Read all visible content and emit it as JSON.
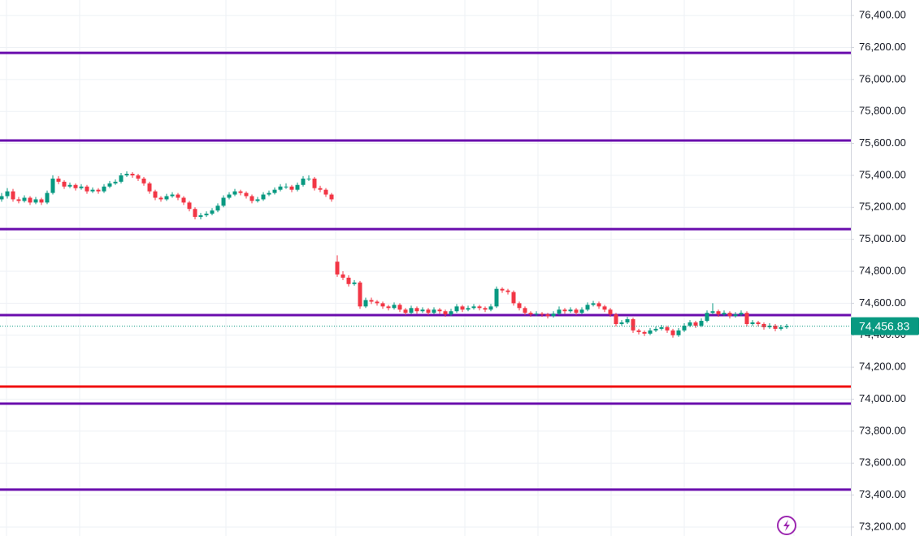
{
  "chart_data": {
    "type": "candlestick",
    "ylim": [
      73144,
      76497
    ],
    "yticks": [
      {
        "value": 73200,
        "label": "73,200.00"
      },
      {
        "value": 73400,
        "label": "73,400.00"
      },
      {
        "value": 73600,
        "label": "73,600.00"
      },
      {
        "value": 73800,
        "label": "73,800.00"
      },
      {
        "value": 74000,
        "label": "74,000.00"
      },
      {
        "value": 74200,
        "label": "74,200.00"
      },
      {
        "value": 74400,
        "label": "74,400.00"
      },
      {
        "value": 74600,
        "label": "74,600.00"
      },
      {
        "value": 74800,
        "label": "74,800.00"
      },
      {
        "value": 75000,
        "label": "75,000.00"
      },
      {
        "value": 75200,
        "label": "75,200.00"
      },
      {
        "value": 75400,
        "label": "75,400.00"
      },
      {
        "value": 75600,
        "label": "75,600.00"
      },
      {
        "value": 75800,
        "label": "75,800.00"
      },
      {
        "value": 76000,
        "label": "76,000.00"
      },
      {
        "value": 76200,
        "label": "76,200.00"
      },
      {
        "value": 76400,
        "label": "76,400.00"
      }
    ],
    "grid": true,
    "up_color": "#089981",
    "down_color": "#f23645",
    "horizontal_lines": [
      {
        "value": 76166,
        "color": "#6a0dad"
      },
      {
        "value": 75618,
        "color": "#6a0dad"
      },
      {
        "value": 75064,
        "color": "#6a0dad"
      },
      {
        "value": 74526,
        "color": "#6a0dad"
      },
      {
        "value": 74079,
        "color": "#f01010"
      },
      {
        "value": 73972,
        "color": "#6a0dad"
      },
      {
        "value": 73434,
        "color": "#6a0dad"
      }
    ],
    "last_price": {
      "value": 74456.83,
      "label": "74,456.83",
      "color": "#089981"
    },
    "candles": [
      [
        75250,
        75290,
        75235,
        75270
      ],
      [
        75270,
        75320,
        75255,
        75300
      ],
      [
        75300,
        75315,
        75235,
        75250
      ],
      [
        75250,
        75265,
        75225,
        75240
      ],
      [
        75240,
        75275,
        75230,
        75260
      ],
      [
        75260,
        75270,
        75215,
        75230
      ],
      [
        75230,
        75265,
        75220,
        75250
      ],
      [
        75250,
        75260,
        75215,
        75230
      ],
      [
        75230,
        75305,
        75220,
        75290
      ],
      [
        75290,
        75400,
        75280,
        75380
      ],
      [
        75380,
        75395,
        75345,
        75360
      ],
      [
        75360,
        75370,
        75315,
        75330
      ],
      [
        75330,
        75355,
        75320,
        75340
      ],
      [
        75340,
        75350,
        75305,
        75320
      ],
      [
        75320,
        75345,
        75310,
        75330
      ],
      [
        75330,
        75340,
        75285,
        75300
      ],
      [
        75300,
        75325,
        75290,
        75310
      ],
      [
        75310,
        75320,
        75285,
        75300
      ],
      [
        75300,
        75345,
        75290,
        75330
      ],
      [
        75330,
        75365,
        75320,
        75350
      ],
      [
        75350,
        75375,
        75340,
        75360
      ],
      [
        75360,
        75415,
        75350,
        75400
      ],
      [
        75400,
        75425,
        75390,
        75410
      ],
      [
        75410,
        75420,
        75385,
        75400
      ],
      [
        75400,
        75410,
        75365,
        75380
      ],
      [
        75380,
        75390,
        75335,
        75350
      ],
      [
        75350,
        75360,
        75285,
        75300
      ],
      [
        75300,
        75310,
        75245,
        75260
      ],
      [
        75260,
        75270,
        75235,
        75250
      ],
      [
        75250,
        75285,
        75240,
        75270
      ],
      [
        75270,
        75295,
        75260,
        75280
      ],
      [
        75280,
        75290,
        75245,
        75260
      ],
      [
        75260,
        75270,
        75215,
        75230
      ],
      [
        75230,
        75240,
        75175,
        75190
      ],
      [
        75190,
        75200,
        75125,
        75140
      ],
      [
        75140,
        75165,
        75125,
        75150
      ],
      [
        75150,
        75175,
        75140,
        75160
      ],
      [
        75160,
        75195,
        75150,
        75180
      ],
      [
        75180,
        75225,
        75170,
        75210
      ],
      [
        75210,
        75275,
        75200,
        75260
      ],
      [
        75260,
        75295,
        75250,
        75280
      ],
      [
        75280,
        75315,
        75270,
        75300
      ],
      [
        75300,
        75310,
        75275,
        75290
      ],
      [
        75290,
        75300,
        75255,
        75270
      ],
      [
        75270,
        75280,
        75225,
        75240
      ],
      [
        75240,
        75265,
        75230,
        75250
      ],
      [
        75250,
        75295,
        75240,
        75280
      ],
      [
        75280,
        75305,
        75270,
        75290
      ],
      [
        75290,
        75325,
        75280,
        75310
      ],
      [
        75310,
        75345,
        75300,
        75330
      ],
      [
        75330,
        75350,
        75315,
        75330
      ],
      [
        75330,
        75340,
        75295,
        75310
      ],
      [
        75310,
        75355,
        75300,
        75340
      ],
      [
        75340,
        75395,
        75330,
        75380
      ],
      [
        75380,
        75400,
        75365,
        75380
      ],
      [
        75380,
        75390,
        75305,
        75320
      ],
      [
        75320,
        75335,
        75295,
        75310
      ],
      [
        75310,
        75320,
        75265,
        75280
      ],
      [
        75280,
        75290,
        75235,
        75250
      ],
      [
        74860,
        74900,
        74765,
        74780
      ],
      [
        74780,
        74800,
        74745,
        74760
      ],
      [
        74760,
        74775,
        74705,
        74720
      ],
      [
        74720,
        74745,
        74710,
        74730
      ],
      [
        74730,
        74740,
        74565,
        74580
      ],
      [
        74580,
        74635,
        74570,
        74620
      ],
      [
        74620,
        74635,
        74595,
        74610
      ],
      [
        74610,
        74620,
        74585,
        74600
      ],
      [
        74600,
        74610,
        74565,
        74580
      ],
      [
        74580,
        74590,
        74555,
        74570
      ],
      [
        74570,
        74605,
        74560,
        74590
      ],
      [
        74590,
        74600,
        74545,
        74560
      ],
      [
        74560,
        74570,
        74525,
        74540
      ],
      [
        74540,
        74585,
        74530,
        74570
      ],
      [
        74570,
        74580,
        74535,
        74550
      ],
      [
        74550,
        74575,
        74540,
        74560
      ],
      [
        74560,
        74570,
        74525,
        74540
      ],
      [
        74540,
        74575,
        74530,
        74560
      ],
      [
        74560,
        74570,
        74535,
        74550
      ],
      [
        74550,
        74560,
        74515,
        74530
      ],
      [
        74530,
        74565,
        74520,
        74550
      ],
      [
        74550,
        74595,
        74540,
        74580
      ],
      [
        74580,
        74590,
        74545,
        74560
      ],
      [
        74560,
        74585,
        74550,
        74570
      ],
      [
        74570,
        74595,
        74560,
        74580
      ],
      [
        74580,
        74590,
        74555,
        74570
      ],
      [
        74570,
        74580,
        74545,
        74560
      ],
      [
        74560,
        74595,
        74550,
        74580
      ],
      [
        74580,
        74705,
        74570,
        74690
      ],
      [
        74690,
        74700,
        74665,
        74680
      ],
      [
        74680,
        74690,
        74655,
        74670
      ],
      [
        74670,
        74680,
        74585,
        74600
      ],
      [
        74600,
        74610,
        74555,
        74570
      ],
      [
        74570,
        74580,
        74525,
        74540
      ],
      [
        74540,
        74550,
        74515,
        74530
      ],
      [
        74530,
        74550,
        74520,
        74535
      ],
      [
        74535,
        74545,
        74515,
        74530
      ],
      [
        74530,
        74540,
        74505,
        74520
      ],
      [
        74520,
        74550,
        74510,
        74535
      ],
      [
        74535,
        74580,
        74525,
        74560
      ],
      [
        74560,
        74570,
        74535,
        74550
      ],
      [
        74550,
        74575,
        74540,
        74560
      ],
      [
        74560,
        74570,
        74525,
        74540
      ],
      [
        74540,
        74575,
        74530,
        74560
      ],
      [
        74560,
        74605,
        74550,
        74590
      ],
      [
        74590,
        74615,
        74580,
        74600
      ],
      [
        74600,
        74610,
        74565,
        74580
      ],
      [
        74580,
        74590,
        74545,
        74560
      ],
      [
        74560,
        74570,
        74515,
        74530
      ],
      [
        74530,
        74540,
        74455,
        74470
      ],
      [
        74470,
        74495,
        74460,
        74480
      ],
      [
        74480,
        74515,
        74470,
        74500
      ],
      [
        74500,
        74510,
        74415,
        74430
      ],
      [
        74430,
        74440,
        74405,
        74420
      ],
      [
        74420,
        74430,
        74395,
        74410
      ],
      [
        74410,
        74445,
        74400,
        74430
      ],
      [
        74430,
        74455,
        74420,
        74440
      ],
      [
        74440,
        74465,
        74430,
        74450
      ],
      [
        74450,
        74460,
        74415,
        74430
      ],
      [
        74430,
        74440,
        74385,
        74400
      ],
      [
        74400,
        74445,
        74390,
        74430
      ],
      [
        74430,
        74475,
        74420,
        74460
      ],
      [
        74460,
        74495,
        74450,
        74480
      ],
      [
        74480,
        74490,
        74445,
        74460
      ],
      [
        74460,
        74505,
        74450,
        74490
      ],
      [
        74490,
        74555,
        74480,
        74540
      ],
      [
        74540,
        74600,
        74530,
        74550
      ],
      [
        74550,
        74560,
        74515,
        74530
      ],
      [
        74530,
        74555,
        74520,
        74540
      ],
      [
        74540,
        74550,
        74505,
        74520
      ],
      [
        74520,
        74545,
        74510,
        74530
      ],
      [
        74530,
        74555,
        74520,
        74540
      ],
      [
        74540,
        74550,
        74455,
        74470
      ],
      [
        74470,
        74495,
        74460,
        74480
      ],
      [
        74480,
        74490,
        74455,
        74470
      ],
      [
        74470,
        74480,
        74435,
        74450
      ],
      [
        74450,
        74475,
        74440,
        74460
      ],
      [
        74460,
        74470,
        74425,
        74440
      ],
      [
        74440,
        74465,
        74430,
        74450
      ],
      [
        74450,
        74470,
        74440,
        74456.83
      ]
    ]
  }
}
